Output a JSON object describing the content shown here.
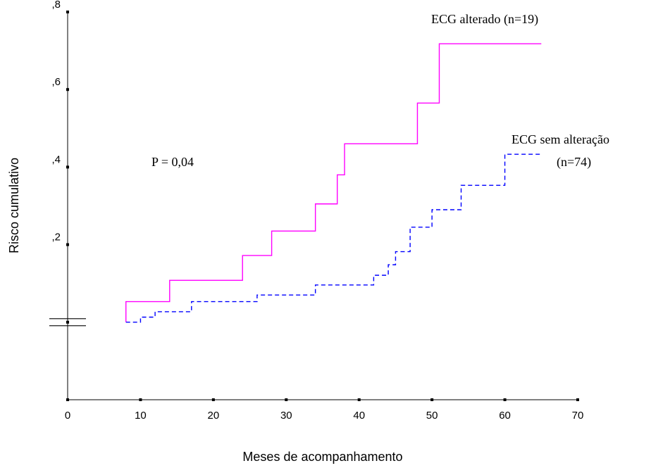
{
  "chart_data": {
    "type": "line",
    "title": "",
    "xlabel": "Meses de acompanhamento",
    "ylabel": "Risco cumulativo",
    "xlim": [
      0,
      70
    ],
    "ylim": [
      -0.2,
      0.8
    ],
    "x_ticks": [
      0,
      10,
      20,
      30,
      40,
      50,
      60,
      70
    ],
    "y_ticks": [
      {
        "value": 0.2,
        "label": ",2"
      },
      {
        "value": 0.4,
        "label": ",4"
      },
      {
        "value": 0.6,
        "label": ",6"
      },
      {
        "value": 0.8,
        "label": ",8"
      }
    ],
    "axis_break_at": 0,
    "grid": false,
    "annotation": "P = 0,04",
    "series": [
      {
        "name": "ECG alterado",
        "label_lines": [
          "ECG alterado (n=19)"
        ],
        "color": "#ff00ff",
        "dash": "solid",
        "step": true,
        "x": [
          8,
          14,
          24,
          28,
          34,
          37,
          38,
          48,
          51,
          65
        ],
        "y": [
          0.053,
          0.108,
          0.172,
          0.235,
          0.305,
          0.38,
          0.46,
          0.565,
          0.718,
          0.718
        ]
      },
      {
        "name": "ECG sem alteração",
        "label_lines": [
          "ECG sem  alteração",
          "(n=74)"
        ],
        "color": "#0000ff",
        "dash": "dashed",
        "step": true,
        "x": [
          8,
          10,
          12,
          17,
          26,
          34,
          42,
          44,
          45,
          47,
          50,
          54,
          60,
          65
        ],
        "y": [
          0.0,
          0.013,
          0.027,
          0.053,
          0.07,
          0.096,
          0.121,
          0.148,
          0.182,
          0.245,
          0.29,
          0.353,
          0.433,
          0.433
        ]
      }
    ]
  }
}
